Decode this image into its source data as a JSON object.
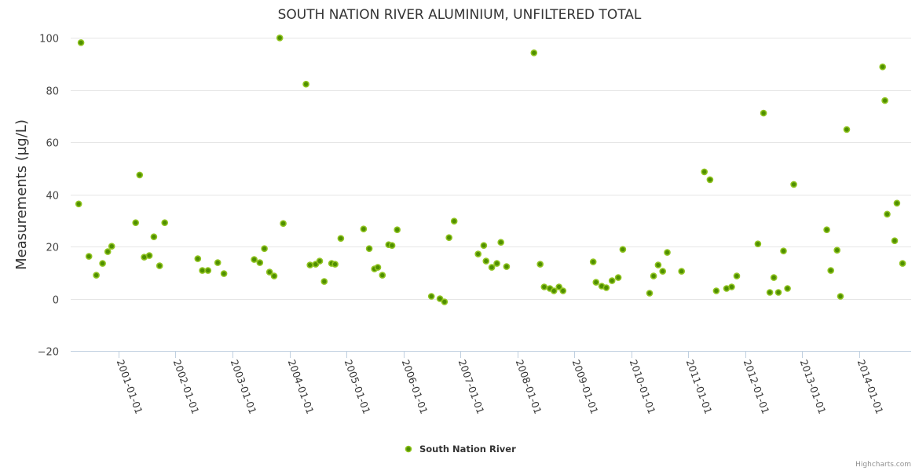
{
  "chart_data": {
    "type": "scatter",
    "title": "SOUTH NATION RIVER ALUMINIUM, UNFILTERED TOTAL",
    "xlabel": "",
    "ylabel": "Measurements (µg/L)",
    "x_unit": "decimal year",
    "xlim": [
      2000.16,
      2014.91
    ],
    "ylim": [
      -20,
      100
    ],
    "grid": true,
    "y_ticks": [
      -20,
      0,
      20,
      40,
      60,
      80,
      100
    ],
    "x_ticks": [
      {
        "value": 2001,
        "label": "2001-01-01"
      },
      {
        "value": 2002,
        "label": "2002-01-01"
      },
      {
        "value": 2003,
        "label": "2003-01-01"
      },
      {
        "value": 2004,
        "label": "2004-01-01"
      },
      {
        "value": 2005,
        "label": "2005-01-01"
      },
      {
        "value": 2006,
        "label": "2006-01-01"
      },
      {
        "value": 2007,
        "label": "2007-01-01"
      },
      {
        "value": 2008,
        "label": "2008-01-01"
      },
      {
        "value": 2009,
        "label": "2009-01-01"
      },
      {
        "value": 2010,
        "label": "2010-01-01"
      },
      {
        "value": 2011,
        "label": "2011-01-01"
      },
      {
        "value": 2012,
        "label": "2012-01-01"
      },
      {
        "value": 2013,
        "label": "2013-01-01"
      },
      {
        "value": 2014,
        "label": "2014-01-01"
      }
    ],
    "legend_position": "bottom-center",
    "series": [
      {
        "name": "South Nation River",
        "color": "#4f8f00",
        "edge_color": "#8fc31f",
        "points": [
          [
            2000.3,
            36.3
          ],
          [
            2000.34,
            98.1
          ],
          [
            2000.48,
            16.2
          ],
          [
            2000.61,
            9.0
          ],
          [
            2000.72,
            13.5
          ],
          [
            2000.81,
            18.0
          ],
          [
            2000.88,
            20.1
          ],
          [
            2001.3,
            29.1
          ],
          [
            2001.37,
            47.4
          ],
          [
            2001.45,
            15.9
          ],
          [
            2001.54,
            16.5
          ],
          [
            2001.62,
            23.7
          ],
          [
            2001.72,
            12.6
          ],
          [
            2001.81,
            29.1
          ],
          [
            2002.39,
            15.3
          ],
          [
            2002.47,
            10.8
          ],
          [
            2002.57,
            10.8
          ],
          [
            2002.74,
            13.8
          ],
          [
            2002.85,
            9.6
          ],
          [
            2003.38,
            15.0
          ],
          [
            2003.48,
            13.8
          ],
          [
            2003.56,
            19.2
          ],
          [
            2003.65,
            10.2
          ],
          [
            2003.73,
            8.7
          ],
          [
            2003.83,
            99.9
          ],
          [
            2003.89,
            28.8
          ],
          [
            2004.29,
            82.2
          ],
          [
            2004.36,
            12.9
          ],
          [
            2004.46,
            13.2
          ],
          [
            2004.53,
            14.4
          ],
          [
            2004.61,
            6.6
          ],
          [
            2004.74,
            13.5
          ],
          [
            2004.8,
            13.2
          ],
          [
            2004.9,
            23.1
          ],
          [
            2005.3,
            26.7
          ],
          [
            2005.4,
            19.2
          ],
          [
            2005.49,
            11.4
          ],
          [
            2005.55,
            12.0
          ],
          [
            2005.63,
            9.0
          ],
          [
            2005.74,
            20.7
          ],
          [
            2005.8,
            20.4
          ],
          [
            2005.89,
            26.4
          ],
          [
            2006.49,
            0.9
          ],
          [
            2006.64,
            0.0
          ],
          [
            2006.72,
            -1.2
          ],
          [
            2006.8,
            23.4
          ],
          [
            2006.89,
            29.7
          ],
          [
            2007.31,
            17.1
          ],
          [
            2007.41,
            20.4
          ],
          [
            2007.45,
            14.4
          ],
          [
            2007.55,
            12.0
          ],
          [
            2007.64,
            13.5
          ],
          [
            2007.71,
            21.6
          ],
          [
            2007.81,
            12.3
          ],
          [
            2008.29,
            94.2
          ],
          [
            2008.4,
            13.2
          ],
          [
            2008.47,
            4.5
          ],
          [
            2008.57,
            3.9
          ],
          [
            2008.64,
            3.0
          ],
          [
            2008.73,
            4.5
          ],
          [
            2008.8,
            3.0
          ],
          [
            2009.33,
            14.1
          ],
          [
            2009.38,
            6.3
          ],
          [
            2009.48,
            4.8
          ],
          [
            2009.56,
            4.2
          ],
          [
            2009.66,
            6.9
          ],
          [
            2009.77,
            8.1
          ],
          [
            2009.85,
            18.9
          ],
          [
            2010.32,
            2.1
          ],
          [
            2010.39,
            8.7
          ],
          [
            2010.47,
            12.9
          ],
          [
            2010.55,
            10.5
          ],
          [
            2010.63,
            17.7
          ],
          [
            2010.88,
            10.5
          ],
          [
            2011.28,
            48.6
          ],
          [
            2011.38,
            45.6
          ],
          [
            2011.49,
            3.0
          ],
          [
            2011.67,
            3.9
          ],
          [
            2011.76,
            4.5
          ],
          [
            2011.85,
            8.7
          ],
          [
            2012.22,
            21.0
          ],
          [
            2012.32,
            71.1
          ],
          [
            2012.43,
            2.4
          ],
          [
            2012.5,
            8.1
          ],
          [
            2012.58,
            2.4
          ],
          [
            2012.67,
            18.3
          ],
          [
            2012.74,
            3.9
          ],
          [
            2012.85,
            43.8
          ],
          [
            2013.43,
            26.4
          ],
          [
            2013.5,
            10.8
          ],
          [
            2013.61,
            18.6
          ],
          [
            2013.67,
            0.9
          ],
          [
            2013.78,
            64.8
          ],
          [
            2014.41,
            88.8
          ],
          [
            2014.45,
            75.9
          ],
          [
            2014.49,
            32.4
          ],
          [
            2014.62,
            22.2
          ],
          [
            2014.66,
            36.6
          ],
          [
            2014.76,
            13.5
          ]
        ]
      }
    ],
    "credits": "Highcharts.com"
  }
}
